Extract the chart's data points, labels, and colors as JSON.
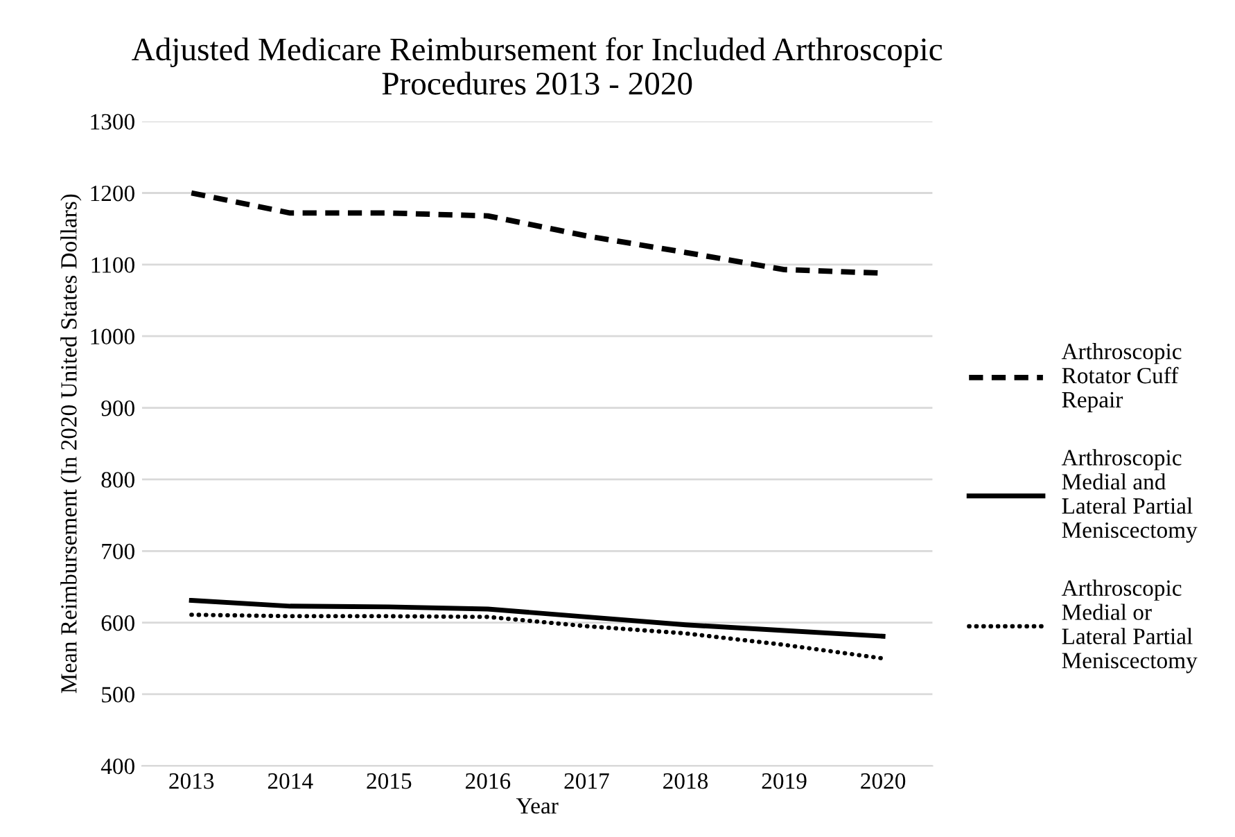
{
  "chart_data": {
    "type": "line",
    "title": "Adjusted Medicare Reimbursement for Included Arthroscopic\nProcedures 2013 - 2020",
    "xlabel": "Year",
    "ylabel": "Mean Reimbursement (In 2020 United States Dollars)",
    "categories": [
      "2013",
      "2014",
      "2015",
      "2016",
      "2017",
      "2018",
      "2019",
      "2020"
    ],
    "series": [
      {
        "name": "Arthroscopic\nRotator Cuff\nRepair",
        "color": "#000000",
        "line_style": "dashed",
        "values": [
          1200,
          1172,
          1172,
          1168,
          1140,
          1117,
          1093,
          1088
        ]
      },
      {
        "name": "Arthroscopic\nMedial and\nLateral Partial\nMeniscectomy",
        "color": "#000000",
        "line_style": "solid",
        "values": [
          631,
          623,
          622,
          619,
          608,
          597,
          589,
          581
        ]
      },
      {
        "name": "Arthroscopic\nMedial or\nLateral Partial\nMeniscectomy",
        "color": "#000000",
        "line_style": "dotted",
        "values": [
          611,
          609,
          609,
          608,
          595,
          585,
          569,
          550
        ]
      }
    ],
    "ylim": [
      400,
      1300
    ],
    "yticks": [
      400,
      500,
      600,
      700,
      800,
      900,
      1000,
      1100,
      1200,
      1300
    ],
    "grid": "y",
    "legend": "right",
    "marker": "none"
  }
}
